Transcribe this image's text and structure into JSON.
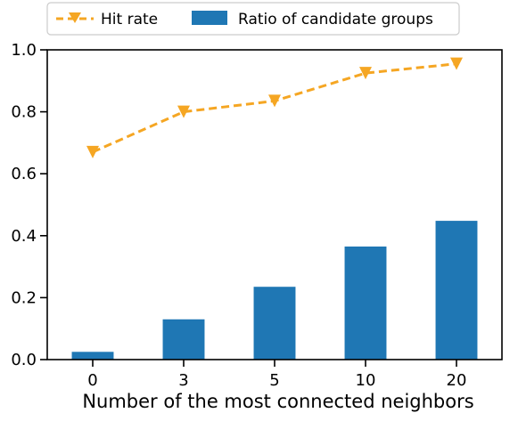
{
  "chart_data": {
    "type": "bar",
    "categories": [
      "0",
      "3",
      "5",
      "10",
      "20"
    ],
    "xlabel": "Number of the most connected neighbors",
    "ylabel": "",
    "ylim": [
      0.0,
      1.0
    ],
    "yticks": [
      "0.0",
      "0.2",
      "0.4",
      "0.6",
      "0.8",
      "1.0"
    ],
    "grid": false,
    "legend_position": "top-center",
    "series": [
      {
        "name": "Hit rate",
        "kind": "line",
        "style": "dashed",
        "marker": "triangle-down",
        "color": "#f5a623",
        "values": [
          0.67,
          0.8,
          0.835,
          0.925,
          0.955
        ]
      },
      {
        "name": "Ratio of candidate groups",
        "kind": "bar",
        "color": "#1f77b4",
        "values": [
          0.025,
          0.13,
          0.235,
          0.365,
          0.448
        ]
      }
    ]
  }
}
